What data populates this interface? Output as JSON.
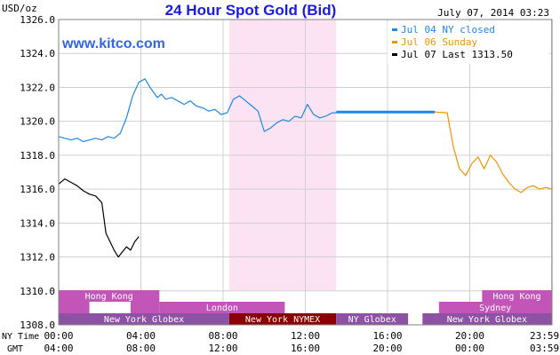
{
  "chart_data": {
    "type": "line",
    "title": "24 Hour Spot Gold (Bid)",
    "date": "July 07, 2014 03:23",
    "watermark": "www.kitco.com",
    "yunit": "USD/oz",
    "ylim": [
      1308,
      1326
    ],
    "y_ticks": [
      "1308.0",
      "1310.0",
      "1312.0",
      "1314.0",
      "1316.0",
      "1318.0",
      "1320.0",
      "1322.0",
      "1324.0",
      "1326.0"
    ],
    "y_tick_values": [
      1308,
      1310,
      1312,
      1314,
      1316,
      1318,
      1320,
      1322,
      1324,
      1326
    ],
    "x_axis_ny_label": "NY Time",
    "x_axis_gmt_label": "GMT",
    "x_ticks_ny": [
      "00:00",
      "04:00",
      "08:00",
      "12:00",
      "16:00",
      "20:00",
      "23:59"
    ],
    "x_ticks_gmt": [
      "04:00",
      "08:00",
      "12:00",
      "16:00",
      "20:00",
      "00:00",
      "03:59"
    ],
    "x_tick_hours": [
      0,
      4,
      8,
      12,
      16,
      20,
      23.98
    ],
    "highlight_hours": [
      8.3,
      13.5
    ],
    "highlight_color": "#fbe3f3",
    "legend": [
      {
        "label": "Jul 04 NY closed",
        "color": "#1e88e5"
      },
      {
        "label": "Jul 06 Sunday",
        "color": "#f39200"
      },
      {
        "label": "Jul 07 Last 1313.50",
        "color": "#000000"
      }
    ],
    "series": [
      {
        "name": "Jul 04 NY closed",
        "color": "#1e88e5",
        "x": [
          0,
          0.3,
          0.6,
          0.9,
          1.2,
          1.5,
          1.8,
          2.1,
          2.4,
          2.7,
          3.0,
          3.3,
          3.6,
          3.9,
          4.2,
          4.5,
          4.8,
          5.0,
          5.2,
          5.5,
          5.8,
          6.1,
          6.4,
          6.7,
          7.0,
          7.3,
          7.6,
          7.9,
          8.2,
          8.5,
          8.8,
          9.1,
          9.4,
          9.7,
          10.0,
          10.3,
          10.6,
          10.9,
          11.2,
          11.5,
          11.8,
          12.1,
          12.4,
          12.7,
          13.0,
          13.3,
          13.5
        ],
        "y": [
          1319.1,
          1319.0,
          1318.9,
          1319.0,
          1318.8,
          1318.9,
          1319.0,
          1318.9,
          1319.1,
          1319.0,
          1319.3,
          1320.2,
          1321.5,
          1322.3,
          1322.5,
          1321.9,
          1321.4,
          1321.6,
          1321.3,
          1321.4,
          1321.2,
          1321.0,
          1321.2,
          1320.9,
          1320.8,
          1320.6,
          1320.7,
          1320.4,
          1320.5,
          1321.3,
          1321.5,
          1321.2,
          1320.9,
          1320.6,
          1319.4,
          1319.6,
          1319.9,
          1320.1,
          1320.0,
          1320.3,
          1320.2,
          1321.0,
          1320.4,
          1320.2,
          1320.3,
          1320.5,
          1320.5
        ]
      },
      {
        "name": "Jul 04 flat",
        "color": "#1e88e5",
        "x": [
          13.5,
          18.3
        ],
        "y": [
          1320.55,
          1320.55
        ],
        "bold": true
      },
      {
        "name": "Jul 06 Sunday",
        "color": "#f39200",
        "x": [
          18.3,
          18.9,
          19.2,
          19.5,
          19.8,
          20.1,
          20.4,
          20.7,
          21.0,
          21.3,
          21.6,
          21.9,
          22.2,
          22.5,
          22.8,
          23.1,
          23.4,
          23.7,
          23.98
        ],
        "y": [
          1320.55,
          1320.5,
          1318.5,
          1317.2,
          1316.8,
          1317.5,
          1317.9,
          1317.2,
          1318.0,
          1317.6,
          1316.9,
          1316.4,
          1316.0,
          1315.8,
          1316.1,
          1316.2,
          1316.0,
          1316.1,
          1316.0
        ]
      },
      {
        "name": "Jul 07 Last 1313.50",
        "color": "#000000",
        "x": [
          0,
          0.3,
          0.6,
          0.9,
          1.2,
          1.5,
          1.8,
          2.1,
          2.3,
          2.5,
          2.7,
          2.9,
          3.1,
          3.3,
          3.5,
          3.7,
          3.9
        ],
        "y": [
          1316.3,
          1316.6,
          1316.4,
          1316.2,
          1315.9,
          1315.7,
          1315.6,
          1315.2,
          1313.4,
          1312.9,
          1312.4,
          1312.0,
          1312.3,
          1312.6,
          1312.4,
          1312.9,
          1313.2
        ]
      }
    ],
    "sessions": {
      "row1": [
        {
          "label": "Hong Kong",
          "start": 0,
          "end": 4.9,
          "color": "#c355b8",
          "text_color": "#ffffff"
        },
        {
          "label": "Hong Kong",
          "start": 20.6,
          "end": 23.98,
          "color": "#c355b8",
          "text_color": "#ffffff"
        }
      ],
      "row2": [
        {
          "label": "",
          "start": 0,
          "end": 1.5,
          "color": "#c355b8",
          "text_color": "#ffffff"
        },
        {
          "label": "",
          "start": 1.5,
          "end": 3.5,
          "color": "#ffffff",
          "text_color": "#ffffff"
        },
        {
          "label": "",
          "start": 3.5,
          "end": 4.9,
          "color": "#c355b8",
          "text_color": "#ffffff"
        },
        {
          "label": "London",
          "start": 4.9,
          "end": 11.0,
          "color": "#c355b8",
          "text_color": "#ffffff"
        },
        {
          "label": "Sydney",
          "start": 18.5,
          "end": 23.98,
          "color": "#c355b8",
          "text_color": "#ffffff"
        }
      ],
      "row3": [
        {
          "label": "New York Globex",
          "start": 0,
          "end": 8.3,
          "color": "#8e52a5",
          "text_color": "#ffffff"
        },
        {
          "label": "New York NYMEX",
          "start": 8.3,
          "end": 13.5,
          "color": "#8a0000",
          "text_color": "#ffffff"
        },
        {
          "label": "NY Globex",
          "start": 13.5,
          "end": 17.0,
          "color": "#8e52a5",
          "text_color": "#ffffff"
        },
        {
          "label": "New York Globex",
          "start": 17.7,
          "end": 23.98,
          "color": "#8e52a5",
          "text_color": "#ffffff"
        }
      ]
    },
    "colors": {
      "title": "#1a1ae6",
      "watermark": "#3366dd",
      "grid": "#d0d0d0",
      "axis_text": "#000000"
    }
  }
}
